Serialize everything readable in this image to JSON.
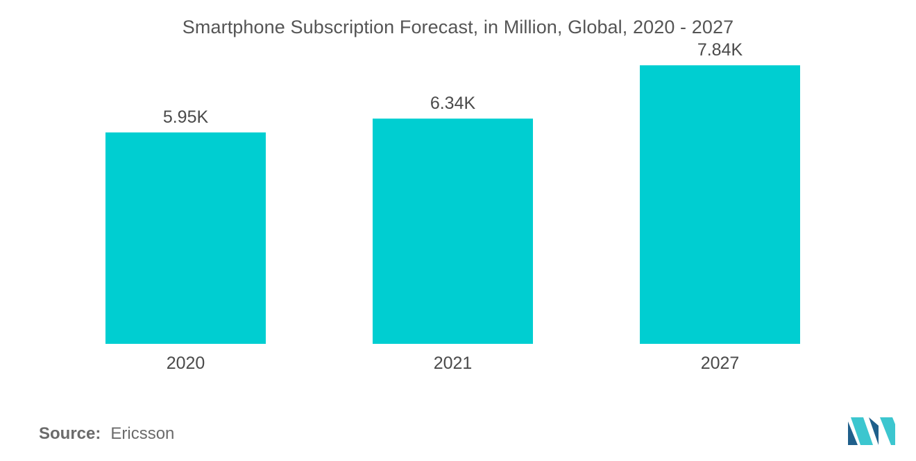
{
  "source": {
    "label": "Source:",
    "name": "Ericsson"
  },
  "colors": {
    "bar": "#00CED1",
    "text": "#4a4a4a",
    "logo_dark": "#1f5f8b",
    "logo_light": "#3cc6cf"
  },
  "logo": {
    "icon": "mordor-intelligence-logo"
  },
  "chart_data": {
    "type": "bar",
    "title": "Smartphone Subscription Forecast, in Million, Global, 2020 - 2027",
    "categories": [
      "2020",
      "2021",
      "2027"
    ],
    "values": [
      5950,
      6340,
      7840
    ],
    "data_labels": [
      "5.95K",
      "6.34K",
      "7.84K"
    ],
    "xlabel": "",
    "ylabel": "",
    "ylim": [
      0,
      8000
    ],
    "grid": false,
    "legend": "none"
  }
}
